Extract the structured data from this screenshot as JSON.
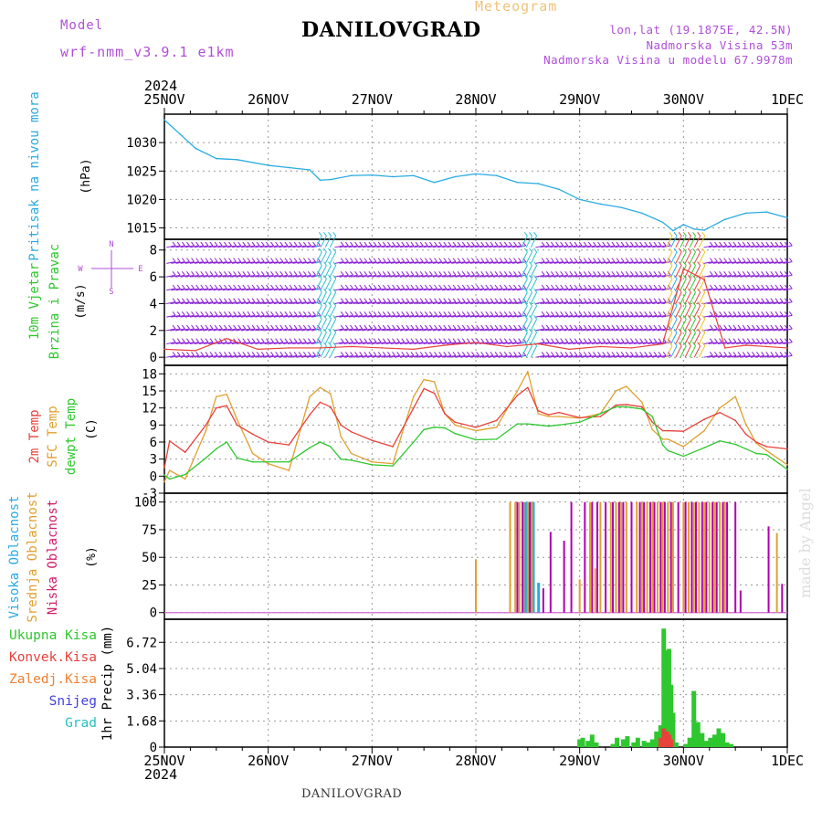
{
  "header": {
    "title": "DANILOVGRAD",
    "subtitle": "Meteogram",
    "model_label": "Model",
    "model_name": "wrf-nmm_v3.9.1  e1km",
    "location_lines": [
      "lon,lat (19.1875E, 42.5N)",
      "Nadmorska Visina 53m",
      "Nadmorska Visina u modelu 67.9978m"
    ]
  },
  "footer": {
    "station": "DANILOVGRAD",
    "credit": "made by Angel"
  },
  "time_axis": {
    "year": "2024",
    "tick_labels": [
      "25NOV",
      "26NOV",
      "27NOV",
      "28NOV",
      "29NOV",
      "30NOV",
      "1DEC"
    ]
  },
  "panel_labels": {
    "pressure": {
      "name": "Pritisak na nivou mora",
      "unit": "(hPa)"
    },
    "wind": {
      "name1": "10m Vjetar",
      "name2": "Brzina i Pravac",
      "unit": "(m/s)",
      "compass_n": "N",
      "compass_w": "W",
      "compass_e": "E",
      "compass_s": "S"
    },
    "temp": {
      "name1": "2m Temp",
      "name2": "SFC Temp",
      "name3": "dewpt Temp",
      "unit": "(C)"
    },
    "cloud": {
      "name1": "Visoka Oblacnost",
      "name2": "Srednja Oblacnost",
      "name3": "Niska Oblacnost",
      "unit": "(%)"
    },
    "precip": {
      "legend": [
        "Ukupna Kisa",
        "Konvek.Kisa",
        "Zaledj.Kisa",
        "Snijeg",
        "Grad"
      ],
      "unit": "1hr Precip (mm)"
    }
  },
  "colors": {
    "pressure": "#29abe2",
    "t2m": "#e8413b",
    "tsfc": "#e0a030",
    "dewpt": "#2fc72f",
    "cloud_high": "#29abe2",
    "cloud_mid": "#e0a030",
    "cloud_low": "#b000b0",
    "precip_total": "#2fc72f",
    "precip_conv": "#e8413b",
    "precip_frz": "#f08030",
    "precip_snow": "#4040e0",
    "precip_hail": "#29c0c0",
    "wind_barb": "#8a20d8",
    "legend_green": "#2fc72f",
    "legend_red": "#e8413b",
    "legend_orange": "#f08030",
    "legend_blue": "#4040e0",
    "legend_cyan": "#29c0c0",
    "label_magenta": "#d0206a",
    "label_purple": "#b04fd8"
  },
  "chart_data": [
    {
      "type": "line",
      "name": "pressure",
      "ylim": [
        1013,
        1035
      ],
      "yticks": [
        1015,
        1020,
        1025,
        1030
      ],
      "x_days": [
        0,
        0.15,
        0.3,
        0.5,
        0.7,
        1,
        1.2,
        1.4,
        1.5,
        1.6,
        1.8,
        2.0,
        2.2,
        2.4,
        2.6,
        2.8,
        3.0,
        3.2,
        3.4,
        3.6,
        3.8,
        4.0,
        4.2,
        4.4,
        4.6,
        4.8,
        4.9,
        5.0,
        5.1,
        5.2,
        5.4,
        5.6,
        5.8,
        6.0
      ],
      "series": [
        {
          "values": [
            1034,
            1031.5,
            1029,
            1027.2,
            1027,
            1026,
            1025.6,
            1025.2,
            1023.4,
            1023.5,
            1024.2,
            1024.3,
            1024,
            1024.2,
            1023,
            1024,
            1024.5,
            1024.2,
            1023,
            1022.8,
            1021.8,
            1020,
            1019.2,
            1018.6,
            1017.6,
            1016,
            1014.5,
            1015.6,
            1014.8,
            1014.6,
            1016.5,
            1017.6,
            1017.8,
            1016.8
          ]
        }
      ]
    },
    {
      "type": "line",
      "name": "wind",
      "ylim": [
        -0.6,
        8.8
      ],
      "yticks": [
        0,
        2,
        4,
        6,
        8
      ],
      "x_days": [
        0,
        0.3,
        0.6,
        0.9,
        1.2,
        1.5,
        1.8,
        2.1,
        2.4,
        2.7,
        3.0,
        3.3,
        3.6,
        3.9,
        4.2,
        4.5,
        4.8,
        5.0,
        5.2,
        5.4,
        5.6,
        5.8,
        6.0
      ],
      "series": [
        {
          "values": [
            0.6,
            0.5,
            1.4,
            0.6,
            0.7,
            0.7,
            0.8,
            0.7,
            0.6,
            0.9,
            1.1,
            0.8,
            1.0,
            0.6,
            0.8,
            0.7,
            1.0,
            6.6,
            5.8,
            0.7,
            0.9,
            0.8,
            0.7
          ]
        }
      ]
    },
    {
      "type": "line",
      "name": "temperature",
      "ylim": [
        -3,
        19.5
      ],
      "yticks": [
        -3,
        0,
        3,
        6,
        9,
        12,
        15,
        18
      ],
      "x_days": [
        0,
        0.05,
        0.2,
        0.4,
        0.5,
        0.6,
        0.7,
        0.85,
        1.0,
        1.2,
        1.4,
        1.5,
        1.6,
        1.7,
        1.8,
        2.0,
        2.2,
        2.4,
        2.5,
        2.6,
        2.7,
        2.8,
        3.0,
        3.2,
        3.4,
        3.5,
        3.6,
        3.7,
        3.8,
        4.0,
        4.2,
        4.35,
        4.45,
        4.6,
        4.7,
        4.8,
        4.85,
        5.0,
        5.2,
        5.35,
        5.5,
        5.6,
        5.7,
        5.8,
        6.0
      ],
      "series": [
        {
          "name": "2m Temp",
          "values": [
            1.5,
            6.2,
            4.2,
            9,
            12,
            12.4,
            9,
            7.4,
            6,
            5.5,
            10.8,
            13,
            12.2,
            9,
            7.8,
            6.3,
            5.2,
            12,
            15.4,
            14.6,
            11,
            9.5,
            8.6,
            9.8,
            14.2,
            15.6,
            11.5,
            10.8,
            11.2,
            10.3,
            10.5,
            12.5,
            12.6,
            12.2,
            9.5,
            8,
            8,
            7.9,
            10,
            11.2,
            9.8,
            7.4,
            6,
            5.2,
            4.8
          ]
        },
        {
          "name": "SFC Temp",
          "values": [
            -1,
            1,
            -0.5,
            8,
            14,
            14.4,
            10,
            4,
            2.2,
            1,
            14,
            15.6,
            14.5,
            7,
            4,
            2.5,
            2.2,
            14,
            17,
            16.6,
            11,
            9,
            8,
            8.6,
            15,
            18.4,
            11,
            10.5,
            10.5,
            10.2,
            11,
            15,
            15.8,
            13,
            8.2,
            6.5,
            6.5,
            5.2,
            8,
            12,
            14,
            9.2,
            5.8,
            4.5,
            2
          ]
        },
        {
          "name": "dewpt Temp",
          "values": [
            0.2,
            -0.5,
            0.3,
            3.2,
            4.8,
            6,
            3.2,
            2.5,
            2.5,
            2.5,
            5,
            6,
            5.2,
            3,
            2.8,
            2,
            1.8,
            6,
            8.2,
            8.6,
            8.5,
            7.5,
            6.4,
            6.5,
            9.2,
            9.2,
            9,
            8.8,
            9,
            9.5,
            11,
            12.2,
            12.2,
            11.8,
            10.5,
            5.5,
            4.5,
            3.5,
            5,
            6.2,
            5.6,
            4.8,
            4,
            3.8,
            1.2
          ]
        }
      ]
    },
    {
      "type": "bar",
      "name": "cloud_cover",
      "ylim": [
        -6,
        108
      ],
      "yticks": [
        0,
        25,
        50,
        75,
        100
      ],
      "series": [
        {
          "name": "Visoka Oblacnost",
          "x_days": [
            3.47,
            3.49,
            3.51,
            3.53,
            3.55,
            3.6
          ],
          "values": [
            100,
            100,
            100,
            100,
            100,
            27
          ]
        },
        {
          "name": "Srednja Oblacnost",
          "x_days": [
            3.0,
            3.33,
            3.38,
            3.42,
            3.46,
            3.5,
            3.54,
            4.0,
            4.1,
            4.15,
            4.2,
            4.3,
            4.35,
            4.4,
            4.45,
            4.55,
            4.6,
            4.65,
            4.7,
            4.75,
            4.8,
            4.85,
            4.9,
            5.0,
            5.05,
            5.1,
            5.15,
            5.2,
            5.25,
            5.3,
            5.35,
            5.4,
            5.9
          ],
          "values": [
            48,
            100,
            100,
            100,
            100,
            100,
            100,
            30,
            100,
            40,
            100,
            100,
            100,
            100,
            100,
            100,
            100,
            100,
            100,
            100,
            100,
            100,
            100,
            100,
            100,
            100,
            100,
            100,
            100,
            100,
            100,
            100,
            72
          ]
        },
        {
          "name": "Niska Oblacnost",
          "x_days": [
            3.4,
            3.45,
            3.52,
            3.65,
            3.72,
            3.85,
            3.92,
            4.05,
            4.12,
            4.17,
            4.25,
            4.32,
            4.38,
            4.42,
            4.5,
            4.58,
            4.62,
            4.68,
            4.72,
            4.78,
            4.82,
            4.88,
            4.95,
            5.02,
            5.08,
            5.12,
            5.18,
            5.22,
            5.28,
            5.32,
            5.38,
            5.42,
            5.5,
            5.55,
            5.82,
            5.95
          ],
          "values": [
            100,
            100,
            100,
            22,
            73,
            65,
            100,
            100,
            100,
            100,
            100,
            100,
            100,
            100,
            100,
            100,
            100,
            100,
            100,
            100,
            100,
            100,
            100,
            100,
            100,
            100,
            100,
            100,
            100,
            100,
            100,
            100,
            100,
            20,
            78,
            26
          ]
        }
      ]
    },
    {
      "type": "bar",
      "name": "precipitation",
      "ylim": [
        0,
        8.2
      ],
      "yticks": [
        0,
        1.68,
        3.36,
        5.04,
        6.72
      ],
      "ytick_labels": [
        "0",
        "1.68",
        "3.36",
        "5.04",
        "6.72"
      ],
      "series": [
        {
          "name": "Ukupna Kisa",
          "x_days": [
            4.0,
            4.03,
            4.08,
            4.12,
            4.16,
            4.32,
            4.36,
            4.42,
            4.46,
            4.52,
            4.56,
            4.62,
            4.66,
            4.7,
            4.74,
            4.78,
            4.81,
            4.84,
            4.86,
            4.88,
            4.9,
            4.93,
            5.02,
            5.06,
            5.1,
            5.14,
            5.18,
            5.22,
            5.26,
            5.3,
            5.34,
            5.38,
            5.42,
            5.46
          ],
          "values": [
            0.5,
            0.6,
            0.4,
            0.8,
            0.3,
            0.2,
            0.6,
            0.5,
            0.7,
            0.3,
            0.6,
            0.4,
            0.3,
            0.5,
            1.0,
            1.4,
            7.6,
            6.2,
            6.3,
            4.0,
            2.2,
            0.3,
            0.2,
            0.6,
            3.6,
            1.6,
            0.9,
            0.4,
            0.6,
            0.8,
            1.2,
            0.9,
            0.3,
            0.2
          ]
        },
        {
          "name": "Konvek.Kisa",
          "x_days": [
            4.78,
            4.81,
            4.84,
            4.86,
            4.88
          ],
          "values": [
            0.6,
            1.2,
            1.0,
            0.8,
            0.5
          ]
        }
      ]
    }
  ]
}
